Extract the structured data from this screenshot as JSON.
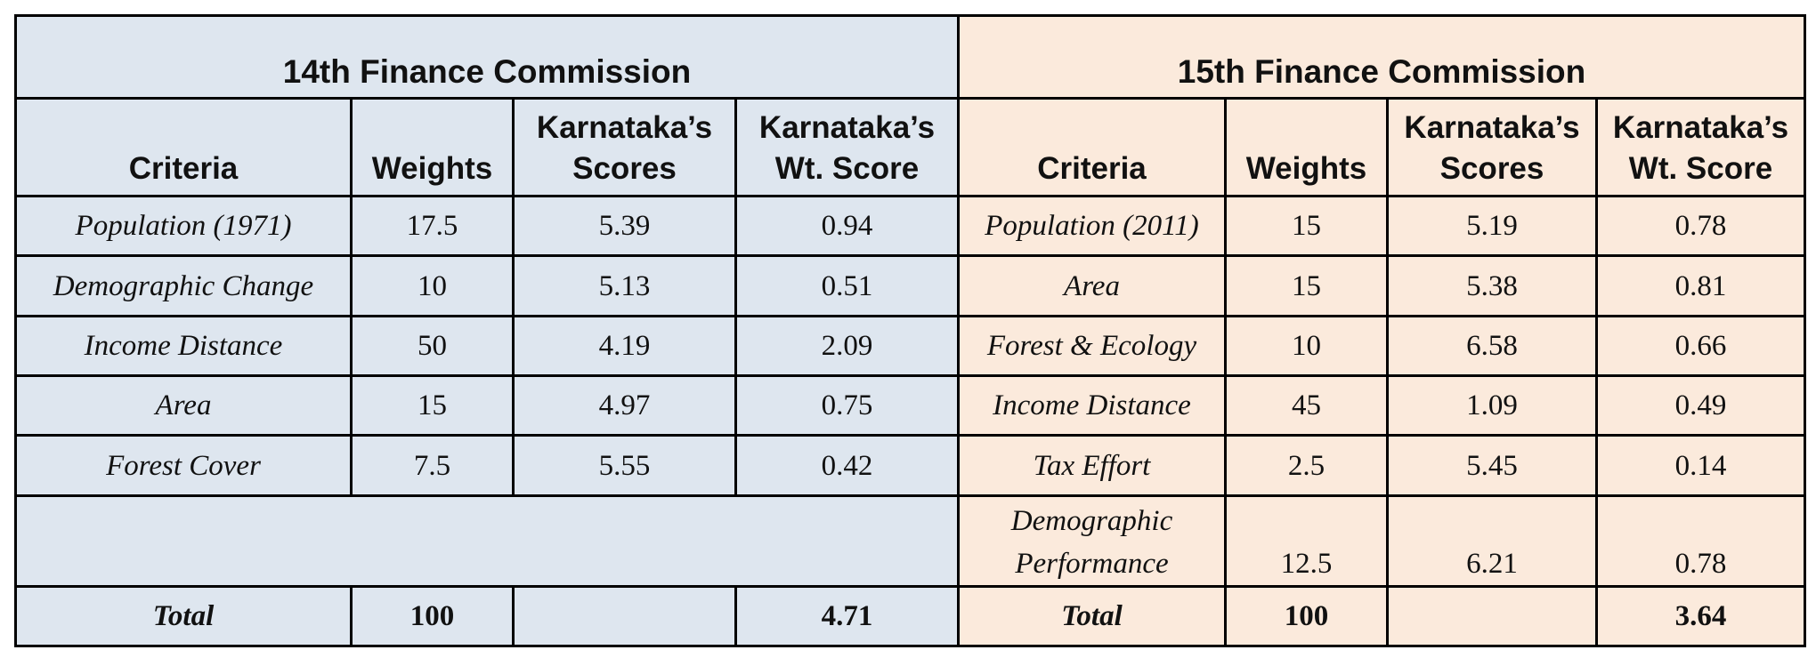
{
  "fc14": {
    "title": "14th Finance Commission",
    "headers": {
      "criteria": "Criteria",
      "weights": "Weights",
      "scores": "Karnataka’s\nScores",
      "wt_score": "Karnataka’s\nWt. Score"
    },
    "rows": [
      {
        "criteria": "Population (1971)",
        "weight": "17.5",
        "score": "5.39",
        "wt_score": "0.94"
      },
      {
        "criteria": "Demographic Change",
        "weight": "10",
        "score": "5.13",
        "wt_score": "0.51"
      },
      {
        "criteria": "Income Distance",
        "weight": "50",
        "score": "4.19",
        "wt_score": "2.09"
      },
      {
        "criteria": "Area",
        "weight": "15",
        "score": "4.97",
        "wt_score": "0.75"
      },
      {
        "criteria": "Forest Cover",
        "weight": "7.5",
        "score": "5.55",
        "wt_score": "0.42"
      }
    ],
    "total": {
      "label": "Total",
      "weight": "100",
      "score": "",
      "wt_score": "4.71"
    }
  },
  "fc15": {
    "title": "15th Finance Commission",
    "headers": {
      "criteria": "Criteria",
      "weights": "Weights",
      "scores": "Karnataka’s\nScores",
      "wt_score": "Karnataka’s\nWt. Score"
    },
    "rows": [
      {
        "criteria": "Population (2011)",
        "weight": "15",
        "score": "5.19",
        "wt_score": "0.78"
      },
      {
        "criteria": "Area",
        "weight": "15",
        "score": "5.38",
        "wt_score": "0.81"
      },
      {
        "criteria": "Forest & Ecology",
        "weight": "10",
        "score": "6.58",
        "wt_score": "0.66"
      },
      {
        "criteria": "Income Distance",
        "weight": "45",
        "score": "1.09",
        "wt_score": "0.49"
      },
      {
        "criteria": "Tax Effort",
        "weight": "2.5",
        "score": "5.45",
        "wt_score": "0.14"
      },
      {
        "criteria": "Demographic\nPerformance",
        "weight": "12.5",
        "score": "6.21",
        "wt_score": "0.78"
      }
    ],
    "total": {
      "label": "Total",
      "weight": "100",
      "score": "",
      "wt_score": "3.64"
    }
  },
  "colors": {
    "fc14_bg": "#dee6ef",
    "fc15_bg": "#fbeadc"
  }
}
